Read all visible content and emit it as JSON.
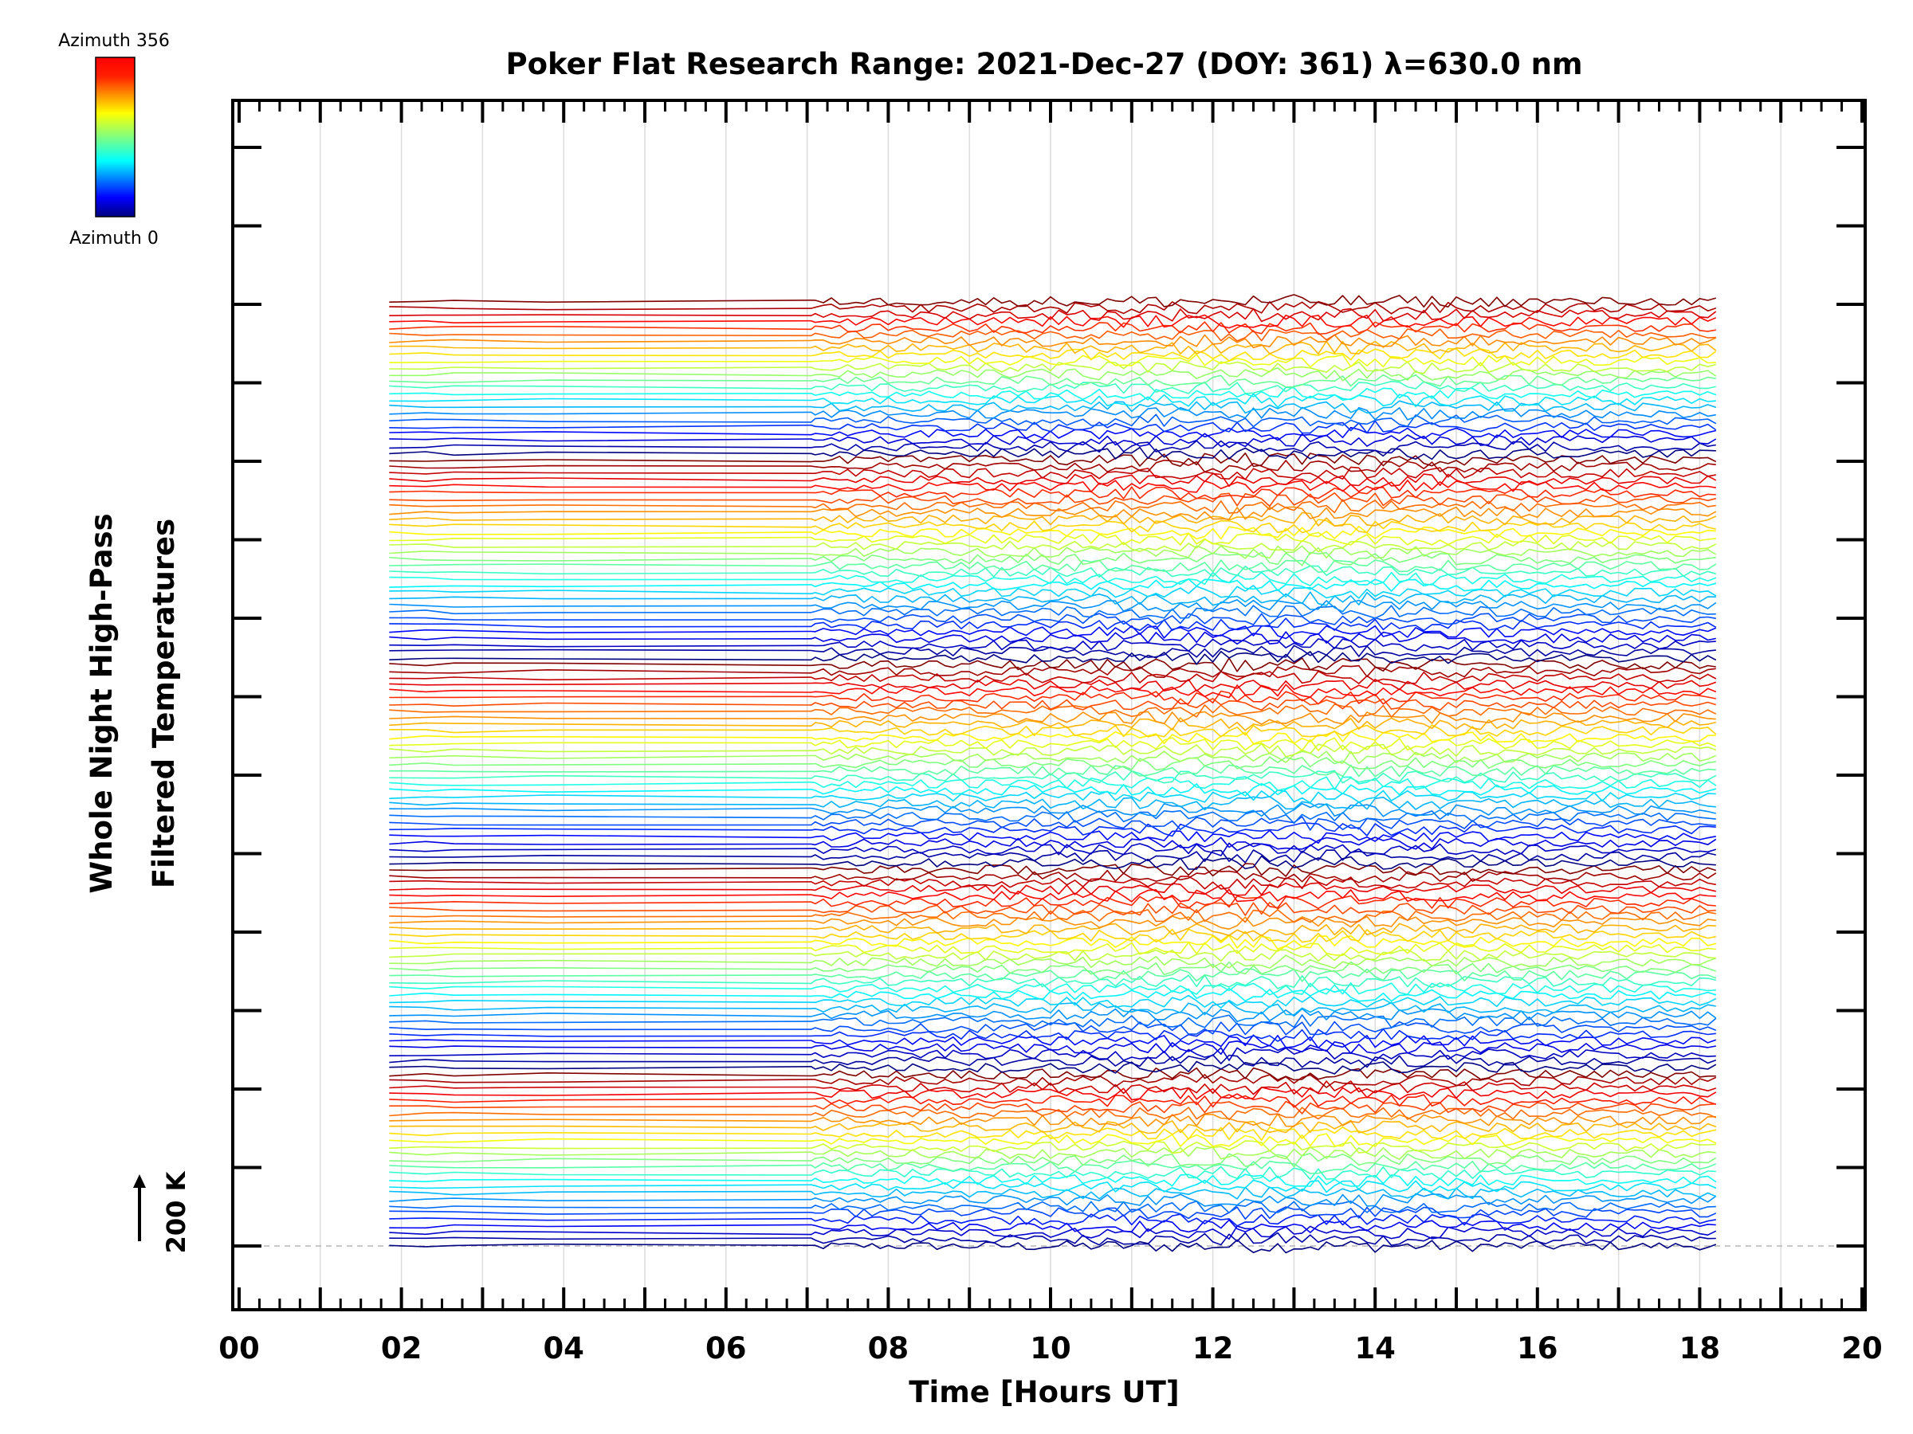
{
  "chart_data": {
    "type": "line",
    "title": "Poker Flat Research Range: 2021-Dec-27 (DOY: 361) λ=630.0 nm",
    "xlabel": "Time [Hours UT]",
    "ylabel_line1": "Whole Night High-Pass",
    "ylabel_line2": "Filtered Temperatures",
    "xlim": [
      0,
      20
    ],
    "x_ticks": [
      "00",
      "02",
      "04",
      "06",
      "08",
      "10",
      "12",
      "14",
      "16",
      "18",
      "20"
    ],
    "scale_marker": "200 K",
    "colorbar": {
      "top_label": "Azimuth 356",
      "bottom_label": "Azimuth 0",
      "colormap": "jet"
    },
    "grid": true,
    "n_series": 144,
    "time_range": [
      1.85,
      18.25
    ],
    "sparse_times": [
      1.85,
      2.3,
      2.65,
      3.8,
      7.05
    ],
    "dense_start": 7.1,
    "dense_step": 0.1,
    "baseline_K": 0,
    "offset_per_series_K": 8.75,
    "y_range_K": [
      -17,
      1470
    ],
    "noise_amplitude_K": 7,
    "azimuth_cycles": [
      {
        "start_azimuth": 0,
        "end_azimuth": 356,
        "series_count": 27
      },
      {
        "start_azimuth": 0,
        "end_azimuth": 356,
        "series_count": 31
      },
      {
        "start_azimuth": 0,
        "end_azimuth": 356,
        "series_count": 31
      },
      {
        "start_azimuth": 0,
        "end_azimuth": 356,
        "series_count": 31
      },
      {
        "start_azimuth": 0,
        "end_azimuth": 356,
        "series_count": 24
      }
    ]
  }
}
